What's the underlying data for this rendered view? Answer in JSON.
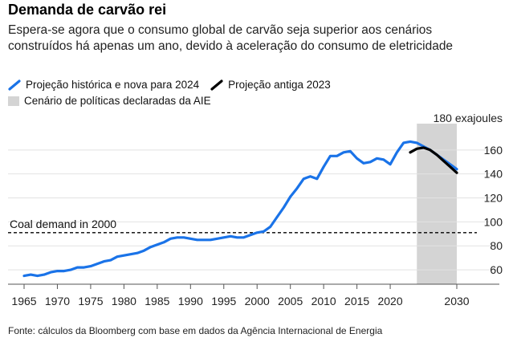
{
  "title": "Demanda de carvão rei",
  "subtitle": "Espera-se agora que o consumo global de carvão seja superior aos cenários construídos há apenas um ano, devido à aceleração do consumo de eletricidade",
  "source": "Fonte: cálculos da Bloomberg com base em dados da Agência Internacional de Energia",
  "colors": {
    "historical": "#1a73e8",
    "old": "#000000",
    "scenario": "#d4d4d4"
  },
  "chart_data": {
    "type": "line",
    "unit_label": "180 exajoules",
    "xlim": [
      1965,
      2030
    ],
    "ylim": [
      48,
      182
    ],
    "x_ticks": [
      1965,
      1970,
      1975,
      1980,
      1985,
      1990,
      1995,
      2000,
      2005,
      2010,
      2015,
      2020,
      2030
    ],
    "y_ticks": [
      60,
      80,
      100,
      120,
      140,
      160
    ],
    "legend": [
      {
        "label": "Projeção histórica e nova para 2024",
        "icon": "blue-line-icon"
      },
      {
        "label": "Projeção antiga 2023",
        "icon": "black-line-icon"
      },
      {
        "label": "Cenário de políticas declaradas da AIE",
        "icon": "gray-box-icon"
      }
    ],
    "scenario_band": {
      "x_start": 2024,
      "x_end": 2030
    },
    "reference_line": {
      "label": "Coal demand in 2000",
      "y": 91
    },
    "series": [
      {
        "name": "Projeção histórica e nova para 2024",
        "x": [
          1965,
          1966,
          1967,
          1968,
          1969,
          1970,
          1971,
          1972,
          1973,
          1974,
          1975,
          1976,
          1977,
          1978,
          1979,
          1980,
          1981,
          1982,
          1983,
          1984,
          1985,
          1986,
          1987,
          1988,
          1989,
          1990,
          1991,
          1992,
          1993,
          1994,
          1995,
          1996,
          1997,
          1998,
          1999,
          2000,
          2001,
          2002,
          2003,
          2004,
          2005,
          2006,
          2007,
          2008,
          2009,
          2010,
          2011,
          2012,
          2013,
          2014,
          2015,
          2016,
          2017,
          2018,
          2019,
          2020,
          2021,
          2022,
          2023,
          2024,
          2025,
          2026,
          2027,
          2028,
          2029,
          2030
        ],
        "y": [
          55,
          56,
          55,
          56,
          58,
          59,
          59,
          60,
          62,
          62,
          63,
          65,
          67,
          68,
          71,
          72,
          73,
          74,
          76,
          79,
          81,
          83,
          86,
          87,
          87,
          86,
          85,
          85,
          85,
          86,
          87,
          88,
          87,
          87,
          89,
          91,
          92,
          96,
          104,
          112,
          121,
          128,
          136,
          138,
          136,
          146,
          155,
          155,
          158,
          159,
          153,
          149,
          150,
          153,
          152,
          148,
          158,
          166,
          167,
          166,
          163,
          160,
          156,
          152,
          148,
          144
        ]
      },
      {
        "name": "Projeção antiga 2023",
        "x": [
          2023,
          2024,
          2025,
          2026,
          2027,
          2028,
          2029,
          2030
        ],
        "y": [
          158,
          161,
          162,
          160,
          156,
          151,
          146,
          141
        ]
      }
    ]
  }
}
